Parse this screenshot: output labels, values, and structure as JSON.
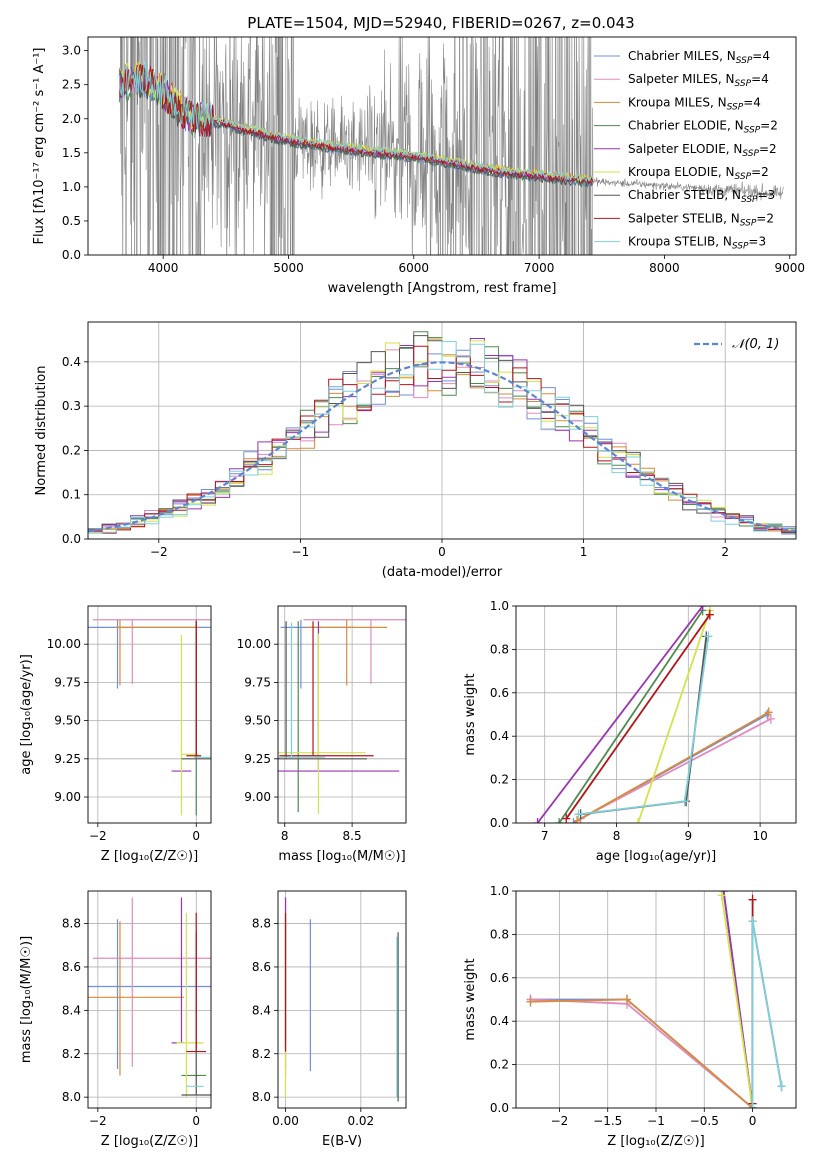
{
  "figure": {
    "title": "PLATE=1504, MJD=52940, FIBERID=0267, z=0.043"
  },
  "series_colors": {
    "Chabrier MILES": "#6f8fe0",
    "Salpeter MILES": "#e08bbf",
    "Kroupa MILES": "#d98a3a",
    "Chabrier ELODIE": "#4f8a4f",
    "Salpeter ELODIE": "#9b33b3",
    "Kroupa ELODIE": "#d4e34c",
    "Chabrier STELIB": "#555555",
    "Salpeter STELIB": "#b3141c",
    "Kroupa STELIB": "#7fd0d8",
    "data": "#808080",
    "normal": "#5b86d6",
    "grid": "#b0b0b0"
  },
  "chart_data": [
    {
      "id": "spectrum",
      "type": "line",
      "title": "PLATE=1504, MJD=52940, FIBERID=0267, z=0.043",
      "xlabel": "wavelength [Angstrom, rest frame]",
      "ylabel": "Flux [fλ10⁻¹⁷ erg cm⁻² s⁻¹ A⁻¹]",
      "xlim": [
        3400,
        9050
      ],
      "ylim": [
        0,
        3.2
      ],
      "xticks": [
        4000,
        5000,
        6000,
        7000,
        8000,
        9000
      ],
      "yticks": [
        0.0,
        0.5,
        1.0,
        1.5,
        2.0,
        2.5,
        3.0
      ],
      "legend_position": "top-right",
      "legend": [
        "Chabrier MILES, N_SSP=4",
        "Salpeter MILES, N_SSP=4",
        "Kroupa MILES, N_SSP=4",
        "Chabrier ELODIE, N_SSP=2",
        "Salpeter ELODIE, N_SSP=2",
        "Kroupa ELODIE, N_SSP=2",
        "Chabrier STELIB, N_SSP=3",
        "Salpeter STELIB, N_SSP=2",
        "Kroupa STELIB, N_SSP=3"
      ],
      "model_continuum": {
        "x": [
          3650,
          3750,
          3850,
          3950,
          4050,
          4150,
          4300,
          4500,
          4700,
          4900,
          5100,
          5300,
          5500,
          5700,
          5900,
          6100,
          6300,
          6500,
          6700,
          6900,
          7100,
          7300,
          7500,
          7700,
          7900,
          8100,
          8300,
          8500,
          8700,
          8900
        ],
        "y": [
          2.5,
          2.55,
          2.6,
          2.45,
          2.3,
          2.1,
          2.0,
          1.92,
          1.82,
          1.72,
          1.65,
          1.6,
          1.55,
          1.5,
          1.47,
          1.42,
          1.35,
          1.28,
          1.22,
          1.18,
          1.14,
          1.1,
          1.07,
          1.05,
          1.03,
          1.0,
          0.98,
          0.95,
          0.93,
          0.9
        ]
      }
    },
    {
      "id": "residuals",
      "type": "line",
      "xlabel": "(data-model)/error",
      "ylabel": "Normed distribution",
      "xlim": [
        -2.5,
        2.5
      ],
      "ylim": [
        0,
        0.49
      ],
      "xticks": [
        -2,
        -1,
        0,
        1,
        2
      ],
      "yticks": [
        0.0,
        0.1,
        0.2,
        0.3,
        0.4
      ],
      "legend": [
        "𝒩(0, 1)"
      ],
      "legend_position": "top-right",
      "grid": true,
      "bin_width": 0.1
    },
    {
      "id": "age-vs-Z",
      "type": "scatter",
      "xlabel": "Z [log₁₀(Z/Z☉)]",
      "ylabel": "age  [log₁₀(age/yr)]",
      "xlim": [
        -2.2,
        0.3
      ],
      "ylim": [
        8.83,
        10.25
      ],
      "xticks": [
        -2,
        0
      ],
      "yticks": [
        9.0,
        9.25,
        9.5,
        9.75,
        10.0
      ],
      "grid": true
    },
    {
      "id": "age-vs-mass",
      "type": "scatter",
      "xlabel": "mass [log₁₀(M/M☉)]",
      "xlim": [
        7.95,
        8.9
      ],
      "ylim": [
        8.83,
        10.25
      ],
      "xticks": [
        8.0,
        8.5
      ],
      "yticks": [
        9.0,
        9.25,
        9.5,
        9.75,
        10.0
      ],
      "grid": true
    },
    {
      "id": "weight-vs-age",
      "type": "line",
      "xlabel": "age  [log₁₀(age/yr)]",
      "ylabel": "mass weight",
      "xlim": [
        6.6,
        10.5
      ],
      "ylim": [
        0,
        1.0
      ],
      "xticks": [
        7,
        8,
        9,
        10
      ],
      "yticks": [
        0.0,
        0.2,
        0.4,
        0.6,
        0.8,
        1.0
      ],
      "grid": true,
      "series": [
        {
          "name": "Chabrier MILES",
          "x": [
            10.1,
            7.4
          ],
          "y": [
            0.5,
            0.0
          ]
        },
        {
          "name": "Salpeter MILES",
          "x": [
            10.15,
            7.5
          ],
          "y": [
            0.48,
            0.02
          ]
        },
        {
          "name": "Kroupa MILES",
          "x": [
            10.12,
            7.45
          ],
          "y": [
            0.51,
            0.01
          ]
        },
        {
          "name": "Chabrier ELODIE",
          "x": [
            9.2,
            7.2
          ],
          "y": [
            0.98,
            0.0
          ]
        },
        {
          "name": "Salpeter ELODIE",
          "x": [
            9.2,
            6.9
          ],
          "y": [
            1.0,
            0.0
          ]
        },
        {
          "name": "Kroupa ELODIE",
          "x": [
            9.3,
            8.3
          ],
          "y": [
            0.98,
            0.0
          ]
        },
        {
          "name": "Chabrier STELIB",
          "x": [
            9.25,
            8.97,
            7.5
          ],
          "y": [
            0.86,
            0.1,
            0.04
          ]
        },
        {
          "name": "Salpeter STELIB",
          "x": [
            9.3,
            7.3
          ],
          "y": [
            0.96,
            0.02
          ]
        },
        {
          "name": "Kroupa STELIB",
          "x": [
            9.28,
            8.95,
            7.47
          ],
          "y": [
            0.86,
            0.1,
            0.04
          ]
        }
      ]
    },
    {
      "id": "mass-vs-Z",
      "type": "scatter",
      "xlabel": "Z [log₁₀(Z/Z☉)]",
      "ylabel": "mass [log₁₀(M/M☉)]",
      "xlim": [
        -2.2,
        0.3
      ],
      "ylim": [
        7.95,
        8.95
      ],
      "xticks": [
        -2,
        0
      ],
      "yticks": [
        8.0,
        8.2,
        8.4,
        8.6,
        8.8
      ],
      "grid": true
    },
    {
      "id": "mass-vs-ebv",
      "type": "scatter",
      "xlabel": "E(B-V)",
      "xlim": [
        -0.002,
        0.032
      ],
      "ylim": [
        7.95,
        8.95
      ],
      "xticks": [
        0.0,
        0.02
      ],
      "xticklabels": [
        "0.00",
        "0.02"
      ],
      "yticks": [
        8.0,
        8.2,
        8.4,
        8.6,
        8.8
      ],
      "grid": true
    },
    {
      "id": "weight-vs-Z",
      "type": "line",
      "xlabel": "Z [log₁₀(Z/Z☉)]",
      "ylabel": "mass weight",
      "xlim": [
        -2.45,
        0.45
      ],
      "ylim": [
        0,
        1.0
      ],
      "xticks": [
        -2.0,
        -1.5,
        -1.0,
        -0.5,
        0.0
      ],
      "yticks": [
        0.0,
        0.2,
        0.4,
        0.6,
        0.8,
        1.0
      ],
      "grid": true,
      "series": [
        {
          "name": "Chabrier MILES",
          "x": [
            -2.3,
            -1.3,
            0.0
          ],
          "y": [
            0.5,
            0.5,
            0.0
          ]
        },
        {
          "name": "Salpeter MILES",
          "x": [
            -2.3,
            -1.3,
            0.0
          ],
          "y": [
            0.5,
            0.48,
            0.0
          ]
        },
        {
          "name": "Kroupa MILES",
          "x": [
            -2.3,
            -1.3,
            0.0
          ],
          "y": [
            0.49,
            0.5,
            0.0
          ]
        },
        {
          "name": "Chabrier ELODIE",
          "x": [
            -0.3,
            0.0
          ],
          "y": [
            1.0,
            0.0
          ]
        },
        {
          "name": "Salpeter ELODIE",
          "x": [
            -0.3,
            0.0
          ],
          "y": [
            1.0,
            0.0
          ]
        },
        {
          "name": "Kroupa ELODIE",
          "x": [
            -0.32,
            0.0
          ],
          "y": [
            0.98,
            0.0
          ]
        },
        {
          "name": "Chabrier STELIB",
          "x": [
            0.0,
            0.0,
            0.3
          ],
          "y": [
            0.0,
            0.86,
            0.1
          ]
        },
        {
          "name": "Salpeter STELIB",
          "x": [
            0.0,
            0.0
          ],
          "y": [
            0.96,
            0.02
          ]
        },
        {
          "name": "Kroupa STELIB",
          "x": [
            0.0,
            0.0,
            0.3
          ],
          "y": [
            0.0,
            0.86,
            0.1
          ]
        }
      ]
    }
  ]
}
